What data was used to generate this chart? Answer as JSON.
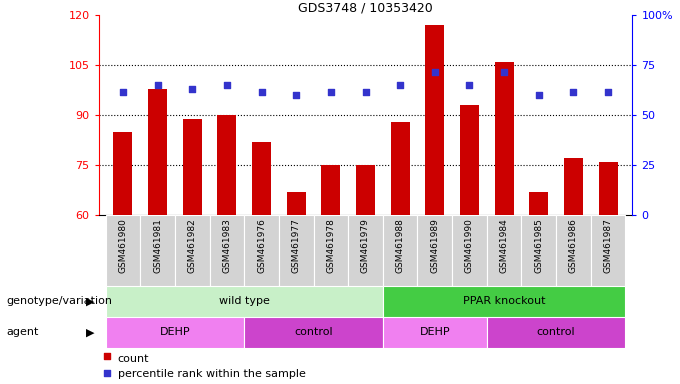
{
  "title": "GDS3748 / 10353420",
  "samples": [
    "GSM461980",
    "GSM461981",
    "GSM461982",
    "GSM461983",
    "GSM461976",
    "GSM461977",
    "GSM461978",
    "GSM461979",
    "GSM461988",
    "GSM461989",
    "GSM461990",
    "GSM461984",
    "GSM461985",
    "GSM461986",
    "GSM461987"
  ],
  "counts": [
    85,
    98,
    89,
    90,
    82,
    67,
    75,
    75,
    88,
    117,
    93,
    106,
    67,
    77,
    76
  ],
  "percentile_pct": [
    61.7,
    65.0,
    63.3,
    65.0,
    61.7,
    60.0,
    61.7,
    61.7,
    65.0,
    71.7,
    65.0,
    71.7,
    60.0,
    61.7,
    61.7
  ],
  "ylim_left": [
    60,
    120
  ],
  "ylim_right": [
    0,
    100
  ],
  "yticks_left": [
    60,
    75,
    90,
    105,
    120
  ],
  "yticks_right": [
    0,
    25,
    50,
    75,
    100
  ],
  "ytick_labels_right": [
    "0",
    "25",
    "50",
    "75",
    "100%"
  ],
  "bar_color": "#cc0000",
  "dot_color": "#3333cc",
  "bg_color": "#ffffff",
  "label_area_color": "#d3d3d3",
  "genotype_groups": [
    {
      "label": "wild type",
      "start": 0,
      "end": 7,
      "color": "#c8f0c8"
    },
    {
      "label": "PPAR knockout",
      "start": 8,
      "end": 14,
      "color": "#44cc44"
    }
  ],
  "agent_groups": [
    {
      "label": "DEHP",
      "start": 0,
      "end": 3,
      "color": "#f080f0"
    },
    {
      "label": "control",
      "start": 4,
      "end": 7,
      "color": "#cc44cc"
    },
    {
      "label": "DEHP",
      "start": 8,
      "end": 10,
      "color": "#f080f0"
    },
    {
      "label": "control",
      "start": 11,
      "end": 14,
      "color": "#cc44cc"
    }
  ],
  "genotype_label": "genotype/variation",
  "agent_label": "agent",
  "legend_count": "count",
  "legend_percentile": "percentile rank within the sample",
  "bar_width": 0.55
}
